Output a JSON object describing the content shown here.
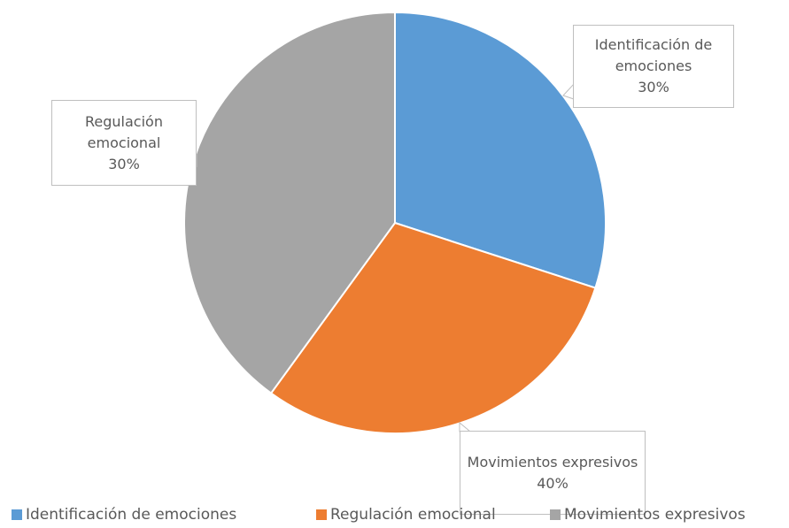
{
  "chart_data": {
    "type": "pie",
    "categories": [
      "Identificación de emociones",
      "Regulación emocional",
      "Movimientos expresivos"
    ],
    "values": [
      30,
      30,
      40
    ],
    "value_labels": [
      "30%",
      "30%",
      "40%"
    ],
    "colors": [
      "#5b9bd5",
      "#ed7d31",
      "#a5a5a5"
    ],
    "legend": "bottom"
  }
}
